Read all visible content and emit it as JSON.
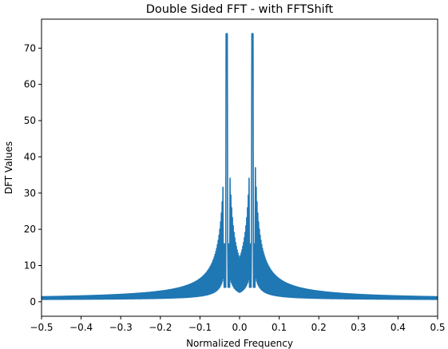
{
  "chart_data": {
    "type": "line",
    "title": "Double Sided FFT - with FFTShift",
    "xlabel": "Normalized Frequency",
    "ylabel": "DFT Values",
    "xlim": [
      -0.5,
      0.5
    ],
    "ylim": [
      -4,
      78
    ],
    "xticks": [
      -0.5,
      -0.4,
      -0.3,
      -0.2,
      -0.1,
      0.0,
      0.1,
      0.2,
      0.3,
      0.4,
      0.5
    ],
    "xtick_labels": [
      "−0.5",
      "−0.4",
      "−0.3",
      "−0.2",
      "−0.1",
      "0.0",
      "0.1",
      "0.2",
      "0.3",
      "0.4",
      "0.5"
    ],
    "yticks": [
      0,
      10,
      20,
      30,
      40,
      50,
      60,
      70
    ],
    "ytick_labels": [
      "0",
      "10",
      "20",
      "30",
      "40",
      "50",
      "60",
      "70"
    ],
    "grid": false,
    "legend": "none",
    "series_color": "#1f77b4",
    "series": [
      {
        "peak_frequency": 0.0325,
        "peak_value": 74,
        "sidelobe_values": [
          16,
          16
        ],
        "noise_floor": 0.5,
        "symmetric": true
      }
    ]
  }
}
